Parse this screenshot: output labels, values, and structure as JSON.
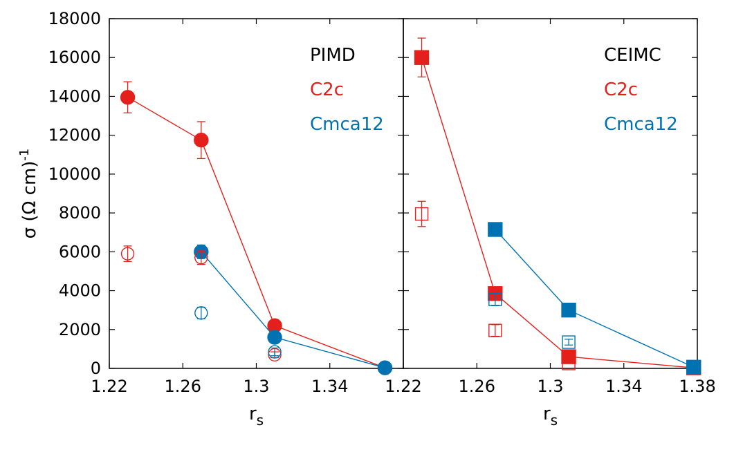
{
  "colors": {
    "red": "#e3201b",
    "blue": "#0072b2",
    "black": "#000000"
  },
  "y_axis": {
    "label_main": "σ (Ω cm)",
    "label_sup": "-1",
    "range": [
      0,
      18000
    ],
    "ticks": [
      0,
      2000,
      4000,
      6000,
      8000,
      10000,
      12000,
      14000,
      16000,
      18000
    ],
    "tick_labels": [
      "0",
      "2000",
      "4000",
      "6000",
      "8000",
      "10000",
      "12000",
      "14000",
      "16000",
      "18000"
    ]
  },
  "chart_data": [
    {
      "type": "scatter",
      "panel": "left",
      "legend_title": "PIMD",
      "marker": "circle",
      "xlabel": "r",
      "xlabel_sub": "s",
      "xlim": [
        1.22,
        1.38
      ],
      "x_ticks": [
        1.22,
        1.26,
        1.3,
        1.34
      ],
      "x_tick_labels": [
        "1.22",
        "1.26",
        "1.3",
        "1.34"
      ],
      "ylim": [
        0,
        18000
      ],
      "legend_position": "top-right",
      "series": [
        {
          "name": "C2c",
          "color": "red",
          "filled": true,
          "connected": true,
          "points": [
            {
              "x": 1.23,
              "y": 13950,
              "err": 800
            },
            {
              "x": 1.27,
              "y": 11750,
              "err": 950
            },
            {
              "x": 1.31,
              "y": 2200,
              "err": 250
            },
            {
              "x": 1.37,
              "y": 30,
              "err": 0
            }
          ]
        },
        {
          "name": "Cmca12",
          "color": "blue",
          "filled": true,
          "connected": true,
          "points": [
            {
              "x": 1.27,
              "y": 6000,
              "err": 350
            },
            {
              "x": 1.31,
              "y": 1600,
              "err": 150
            },
            {
              "x": 1.37,
              "y": 30,
              "err": 0
            }
          ]
        },
        {
          "name": "",
          "color": "red",
          "filled": false,
          "connected": false,
          "points": [
            {
              "x": 1.23,
              "y": 5900,
              "err": 400
            },
            {
              "x": 1.27,
              "y": 5700,
              "err": 350
            },
            {
              "x": 1.31,
              "y": 700,
              "err": 150
            }
          ]
        },
        {
          "name": "",
          "color": "blue",
          "filled": false,
          "connected": false,
          "points": [
            {
              "x": 1.27,
              "y": 2850,
              "err": 300
            },
            {
              "x": 1.31,
              "y": 850,
              "err": 200
            }
          ]
        }
      ]
    },
    {
      "type": "scatter",
      "panel": "right",
      "legend_title": "CEIMC",
      "marker": "square",
      "xlabel": "r",
      "xlabel_sub": "s",
      "xlim": [
        1.22,
        1.38
      ],
      "x_ticks": [
        1.22,
        1.26,
        1.3,
        1.34,
        1.38
      ],
      "x_tick_labels": [
        "1.22",
        "1.26",
        "1.3",
        "1.34",
        "1.38"
      ],
      "ylim": [
        0,
        18000
      ],
      "legend_position": "top-right",
      "series": [
        {
          "name": "C2c",
          "color": "red",
          "filled": true,
          "connected": true,
          "points": [
            {
              "x": 1.23,
              "y": 16000,
              "err": 1000
            },
            {
              "x": 1.27,
              "y": 3850,
              "err": 200
            },
            {
              "x": 1.31,
              "y": 600,
              "err": 0
            },
            {
              "x": 1.378,
              "y": 30,
              "err": 0
            }
          ]
        },
        {
          "name": "Cmca12",
          "color": "blue",
          "filled": true,
          "connected": true,
          "points": [
            {
              "x": 1.27,
              "y": 7150,
              "err": 0
            },
            {
              "x": 1.31,
              "y": 3000,
              "err": 0
            },
            {
              "x": 1.378,
              "y": 60,
              "err": 0
            }
          ]
        },
        {
          "name": "",
          "color": "red",
          "filled": false,
          "connected": false,
          "points": [
            {
              "x": 1.23,
              "y": 7950,
              "err": 650
            },
            {
              "x": 1.27,
              "y": 1950,
              "err": 300
            },
            {
              "x": 1.31,
              "y": 250,
              "err": 0
            }
          ]
        },
        {
          "name": "",
          "color": "blue",
          "filled": false,
          "connected": false,
          "points": [
            {
              "x": 1.27,
              "y": 3550,
              "err": 300
            },
            {
              "x": 1.31,
              "y": 1350,
              "err": 150
            }
          ]
        }
      ]
    }
  ]
}
